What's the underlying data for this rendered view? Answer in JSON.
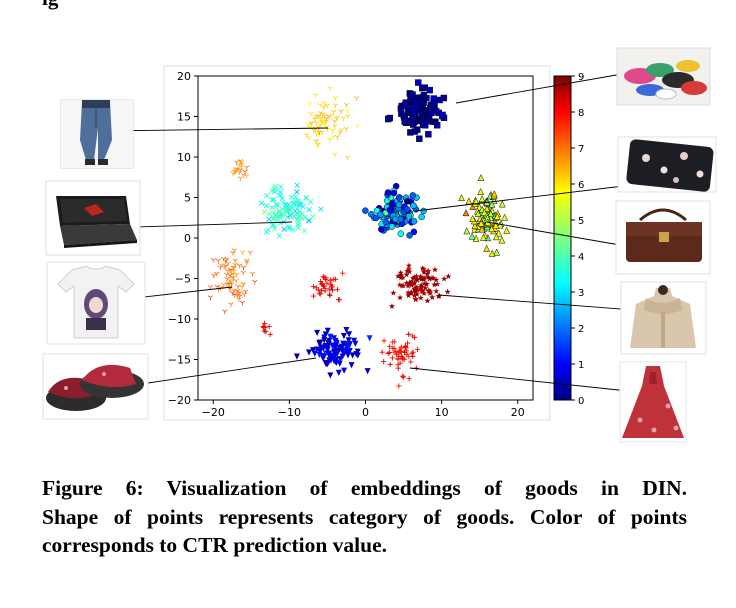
{
  "caption": {
    "line1": "Figure 6: Visualization of embeddings of goods in DIN.",
    "line2": "Shape of points represents category of goods. Color of points",
    "line3": "corresponds to CTR prediction value."
  },
  "top_fragment": "ig",
  "chart_data": {
    "type": "scatter",
    "title": "",
    "xlabel": "",
    "ylabel": "",
    "xlim": [
      -22,
      22
    ],
    "ylim": [
      -20,
      20
    ],
    "xticks": [
      -20,
      -10,
      0,
      10,
      20
    ],
    "yticks": [
      20,
      15,
      10,
      5,
      0,
      -5,
      -10,
      -15,
      -20
    ],
    "grid": false,
    "colorbar": {
      "min": 0,
      "max": 9,
      "ticks": [
        9,
        8,
        7,
        6,
        5,
        4,
        3,
        2,
        1,
        0
      ],
      "colormap": "jet"
    },
    "clusters": [
      {
        "category": "jeans",
        "marker": "tri",
        "cx": -5,
        "cy": 14,
        "sx": 2.2,
        "sy": 2.2,
        "n": 70,
        "ctr": 6.1,
        "ctr_spread": 0.25,
        "seed": 11
      },
      {
        "category": "shoes",
        "marker": "square",
        "cx": 7,
        "cy": 15.5,
        "sx": 2.0,
        "sy": 1.6,
        "n": 110,
        "ctr": 0.3,
        "ctr_spread": 0.3,
        "seed": 23
      },
      {
        "category": "laptop",
        "marker": "x",
        "cx": -10,
        "cy": 3.5,
        "sx": 2.3,
        "sy": 1.8,
        "n": 100,
        "ctr": 3.6,
        "ctr_spread": 0.35,
        "seed": 37
      },
      {
        "category": "wallet",
        "marker": "circle",
        "cx": 4,
        "cy": 3.3,
        "sx": 2.1,
        "sy": 1.7,
        "n": 100,
        "ctr": 2.2,
        "ctr_spread": 0.9,
        "seed": 41
      },
      {
        "category": "bag",
        "marker": "triangle",
        "cx": 16,
        "cy": 2.5,
        "sx": 1.8,
        "sy": 2.6,
        "n": 95,
        "ctr": 5.4,
        "ctr_spread": 0.5,
        "seed": 53
      },
      {
        "category": "tshirt",
        "marker": "tri",
        "cx": -17.5,
        "cy": -5,
        "sx": 2.1,
        "sy": 2.3,
        "n": 70,
        "ctr": 6.9,
        "ctr_spread": 0.3,
        "seed": 61
      },
      {
        "category": "tshirt-small",
        "marker": "tri",
        "cx": -16.5,
        "cy": 8.2,
        "sx": 0.7,
        "sy": 0.8,
        "n": 18,
        "ctr": 6.8,
        "ctr_spread": 0.3,
        "seed": 67
      },
      {
        "category": "coat",
        "marker": "star",
        "cx": 7,
        "cy": -5.8,
        "sx": 2.2,
        "sy": 1.7,
        "n": 90,
        "ctr": 8.7,
        "ctr_spread": 0.2,
        "seed": 71
      },
      {
        "category": "slippers",
        "marker": "triangle-down",
        "cx": -4,
        "cy": -14,
        "sx": 2.4,
        "sy": 1.5,
        "n": 100,
        "ctr": 0.8,
        "ctr_spread": 0.3,
        "seed": 83
      },
      {
        "category": "dress",
        "marker": "plus",
        "cx": 4.5,
        "cy": -14.5,
        "sx": 1.6,
        "sy": 1.7,
        "n": 55,
        "ctr": 7.8,
        "ctr_spread": 0.25,
        "seed": 97
      },
      {
        "category": "red-plus-center",
        "marker": "plus",
        "cx": -5,
        "cy": -6,
        "sx": 1.3,
        "sy": 1.1,
        "n": 35,
        "ctr": 8.0,
        "ctr_spread": 0.2,
        "seed": 101
      },
      {
        "category": "red-plus-left",
        "marker": "plus",
        "cx": -13,
        "cy": -11,
        "sx": 0.4,
        "sy": 0.8,
        "n": 8,
        "ctr": 8.1,
        "ctr_spread": 0.2,
        "seed": 107
      }
    ],
    "annotations": [
      {
        "label": "jeans",
        "from": [
          -5,
          13.5
        ],
        "to_side": "left-image-1"
      },
      {
        "label": "sneakers",
        "from": [
          8,
          16.5
        ],
        "to_side": "right-image-1"
      },
      {
        "label": "laptop",
        "from": [
          -10,
          2
        ],
        "to_side": "left-image-2"
      },
      {
        "label": "wallet",
        "from": [
          6,
          3.5
        ],
        "to_side": "right-image-2"
      },
      {
        "label": "handbag",
        "from": [
          16,
          1
        ],
        "to_side": "right-image-3"
      },
      {
        "label": "tshirt",
        "from": [
          -17,
          -6
        ],
        "to_side": "left-image-3"
      },
      {
        "label": "coat",
        "from": [
          9,
          -7
        ],
        "to_side": "right-image-4"
      },
      {
        "label": "slippers",
        "from": [
          -5,
          -15
        ],
        "to_side": "left-image-4"
      },
      {
        "label": "dress",
        "from": [
          5,
          -16
        ],
        "to_side": "right-image-5"
      }
    ]
  },
  "colors": {
    "axis": "#000000",
    "figure_border": "#d8d8d8"
  }
}
